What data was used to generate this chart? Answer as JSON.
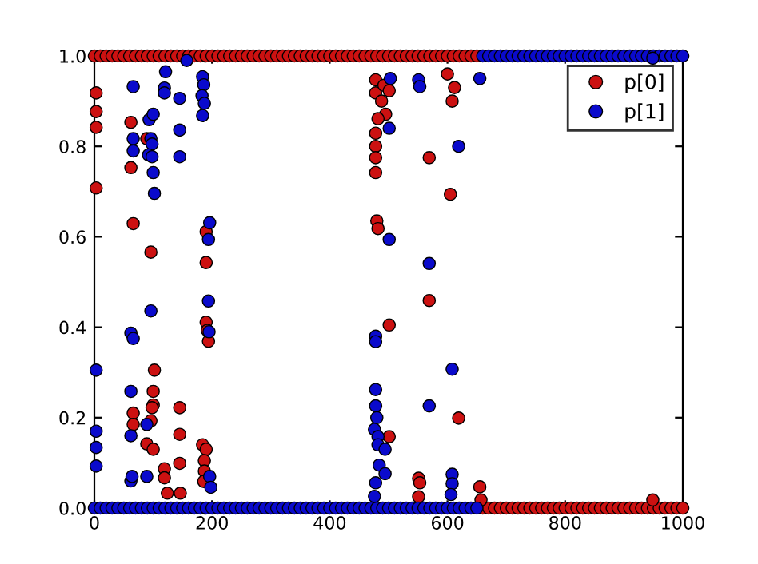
{
  "chart_data": {
    "type": "scatter",
    "xlim": [
      0,
      1000
    ],
    "ylim": [
      0,
      1
    ],
    "xticks": [
      0,
      200,
      400,
      600,
      800,
      1000
    ],
    "yticks": [
      {
        "value": 0,
        "label": "0.0"
      },
      {
        "value": 0.2,
        "label": "0.2"
      },
      {
        "value": 0.4,
        "label": "0.4"
      },
      {
        "value": 0.6,
        "label": "0.6"
      },
      {
        "value": 0.8,
        "label": "0.8"
      },
      {
        "value": 1,
        "label": "1.0"
      }
    ],
    "grid": false,
    "legend": "top right",
    "marker": "circle",
    "series": [
      {
        "name": "p[0]",
        "color": "#cc1111",
        "x": [
          0,
          10,
          20,
          30,
          40,
          50,
          60,
          70,
          80,
          90,
          100,
          110,
          120,
          130,
          140,
          150,
          160,
          170,
          180,
          190,
          200,
          210,
          220,
          230,
          240,
          250,
          260,
          270,
          280,
          290,
          300,
          310,
          320,
          330,
          340,
          350,
          360,
          370,
          380,
          390,
          400,
          410,
          420,
          430,
          440,
          450,
          460,
          470,
          480,
          490,
          500,
          510,
          520,
          530,
          540,
          550,
          560,
          570,
          580,
          590,
          600,
          610,
          620,
          630,
          640,
          650,
          660,
          670,
          680,
          690,
          700,
          710,
          720,
          730,
          740,
          750,
          760,
          770,
          780,
          790,
          800,
          810,
          820,
          830,
          840,
          850,
          860,
          870,
          880,
          890,
          900,
          910,
          920,
          930,
          940,
          950,
          960,
          970,
          980,
          990,
          1000,
          3,
          3,
          3,
          3,
          62,
          62,
          66,
          96,
          89,
          102,
          100,
          100,
          98,
          66,
          66,
          96,
          89,
          100,
          145,
          145,
          145,
          119,
          119,
          124,
          146,
          184,
          190,
          187,
          187,
          186,
          190,
          190,
          190,
          192,
          194,
          478,
          478,
          492,
          501,
          488,
          495,
          482,
          478,
          478,
          478,
          478,
          480,
          482,
          501,
          501,
          569,
          569,
          605,
          619,
          600,
          612,
          608,
          551,
          553,
          551,
          655,
          657,
          949
        ],
        "values": [
          1,
          1,
          1,
          1,
          1,
          1,
          1,
          1,
          1,
          1,
          1,
          1,
          1,
          1,
          1,
          1,
          1,
          1,
          1,
          1,
          1,
          1,
          1,
          1,
          1,
          1,
          1,
          1,
          1,
          1,
          1,
          1,
          1,
          1,
          1,
          1,
          1,
          1,
          1,
          1,
          1,
          1,
          1,
          1,
          1,
          1,
          1,
          1,
          1,
          1,
          1,
          1,
          1,
          1,
          1,
          1,
          1,
          1,
          1,
          1,
          1,
          1,
          1,
          1,
          1,
          1,
          0,
          0,
          0,
          0,
          0,
          0,
          0,
          0,
          0,
          0,
          0,
          0,
          0,
          0,
          0,
          0,
          0,
          0,
          0,
          0,
          0,
          0,
          0,
          0,
          0,
          0,
          0,
          0,
          0,
          0,
          0,
          0,
          0,
          0,
          0,
          0.918,
          0.877,
          0.842,
          0.708,
          0.853,
          0.753,
          0.629,
          0.566,
          0.817,
          0.305,
          0.258,
          0.228,
          0.222,
          0.21,
          0.185,
          0.193,
          0.142,
          0.13,
          0.222,
          0.163,
          0.099,
          0.087,
          0.067,
          0.033,
          0.033,
          0.14,
          0.13,
          0.105,
          0.082,
          0.059,
          0.611,
          0.543,
          0.411,
          0.393,
          0.369,
          0.947,
          0.918,
          0.935,
          0.923,
          0.9,
          0.871,
          0.861,
          0.829,
          0.8,
          0.775,
          0.742,
          0.635,
          0.618,
          0.405,
          0.158,
          0.775,
          0.459,
          0.694,
          0.199,
          0.96,
          0.93,
          0.9,
          0.066,
          0.056,
          0.025,
          0.047,
          0.018,
          0.018
        ]
      },
      {
        "name": "p[1]",
        "color": "#0a0acc",
        "x": [
          0,
          10,
          20,
          30,
          40,
          50,
          60,
          70,
          80,
          90,
          100,
          110,
          120,
          130,
          140,
          150,
          160,
          170,
          180,
          190,
          200,
          210,
          220,
          230,
          240,
          250,
          260,
          270,
          280,
          290,
          300,
          310,
          320,
          330,
          340,
          350,
          360,
          370,
          380,
          390,
          400,
          410,
          420,
          430,
          440,
          450,
          460,
          470,
          480,
          490,
          500,
          510,
          520,
          530,
          540,
          550,
          560,
          570,
          580,
          590,
          600,
          610,
          620,
          630,
          640,
          650,
          660,
          670,
          680,
          690,
          700,
          710,
          720,
          730,
          740,
          750,
          760,
          770,
          780,
          790,
          800,
          810,
          820,
          830,
          840,
          850,
          860,
          870,
          880,
          890,
          900,
          910,
          920,
          930,
          940,
          950,
          960,
          970,
          980,
          990,
          1000,
          66,
          66,
          66,
          93,
          100,
          96,
          98,
          92,
          98,
          100,
          102,
          96,
          62,
          66,
          3,
          62,
          62,
          3,
          3,
          3,
          89,
          62,
          64,
          89,
          119,
          119,
          121,
          145,
          145,
          145,
          157,
          184,
          186,
          183,
          187,
          184,
          196,
          194,
          194,
          195,
          196,
          198,
          503,
          501,
          501,
          478,
          478,
          478,
          478,
          480,
          476,
          482,
          482,
          494,
          484,
          478,
          494,
          476,
          569,
          569,
          608,
          619,
          551,
          553,
          655,
          608,
          608,
          606,
          949
        ],
        "values": [
          0,
          0,
          0,
          0,
          0,
          0,
          0,
          0,
          0,
          0,
          0,
          0,
          0,
          0,
          0,
          0,
          0,
          0,
          0,
          0,
          0,
          0,
          0,
          0,
          0,
          0,
          0,
          0,
          0,
          0,
          0,
          0,
          0,
          0,
          0,
          0,
          0,
          0,
          0,
          0,
          0,
          0,
          0,
          0,
          0,
          0,
          0,
          0,
          0,
          0,
          0,
          0,
          0,
          0,
          0,
          0,
          0,
          0,
          0,
          0,
          0,
          0,
          0,
          0,
          0,
          0,
          1,
          1,
          1,
          1,
          1,
          1,
          1,
          1,
          1,
          1,
          1,
          1,
          1,
          1,
          1,
          1,
          1,
          1,
          1,
          1,
          1,
          1,
          1,
          1,
          1,
          1,
          1,
          1,
          1,
          1,
          1,
          1,
          1,
          1,
          1,
          0.932,
          0.817,
          0.79,
          0.859,
          0.871,
          0.817,
          0.805,
          0.781,
          0.777,
          0.742,
          0.696,
          0.436,
          0.387,
          0.375,
          0.305,
          0.258,
          0.16,
          0.17,
          0.134,
          0.093,
          0.185,
          0.06,
          0.07,
          0.07,
          0.929,
          0.918,
          0.965,
          0.906,
          0.836,
          0.777,
          0.99,
          0.954,
          0.936,
          0.912,
          0.895,
          0.868,
          0.631,
          0.594,
          0.458,
          0.39,
          0.07,
          0.046,
          0.95,
          0.84,
          0.594,
          0.38,
          0.368,
          0.262,
          0.226,
          0.2,
          0.174,
          0.158,
          0.14,
          0.13,
          0.095,
          0.056,
          0.076,
          0.026,
          0.541,
          0.226,
          0.307,
          0.8,
          0.947,
          0.932,
          0.95,
          0.075,
          0.054,
          0.03,
          0.995
        ]
      }
    ]
  }
}
